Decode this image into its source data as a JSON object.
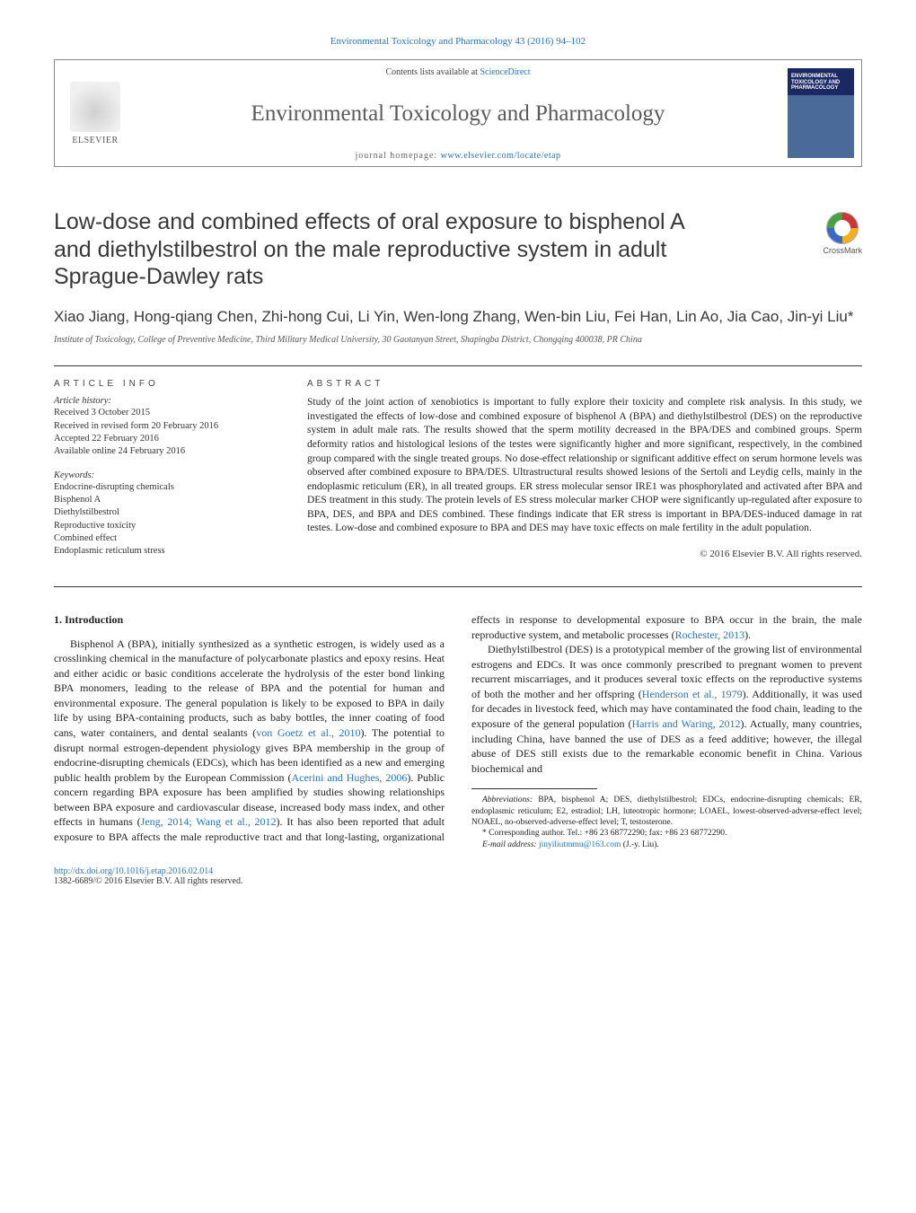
{
  "header": {
    "citation_line": "Environmental Toxicology and Pharmacology 43 (2016) 94–102",
    "contents_line_prefix": "Contents lists available at ",
    "contents_link": "ScienceDirect",
    "journal_title": "Environmental Toxicology and Pharmacology",
    "homepage_prefix": "journal homepage: ",
    "homepage_link": "www.elsevier.com/locate/etap",
    "elsevier_label": "ELSEVIER",
    "cover_text": "ENVIRONMENTAL TOXICOLOGY AND PHARMACOLOGY"
  },
  "colors": {
    "link": "#2a74b8",
    "text": "#222222",
    "heading_gray": "#383838",
    "border": "#888888",
    "cover_top": "#1a2864",
    "cover_bottom": "#4a6a9a",
    "rule": "#333333"
  },
  "crossmark_label": "CrossMark",
  "article": {
    "title": "Low-dose and combined effects of oral exposure to bisphenol A and diethylstilbestrol on the male reproductive system in adult Sprague-Dawley rats",
    "authors": "Xiao Jiang, Hong-qiang Chen, Zhi-hong Cui, Li Yin, Wen-long Zhang, Wen-bin Liu, Fei Han, Lin Ao, Jia Cao, Jin-yi Liu*",
    "affiliation": "Institute of Toxicology, College of Preventive Medicine, Third Military Medical University, 30 Gaotanyan Street, Shapingba District, Chongqing 400038, PR China"
  },
  "info": {
    "heading": "article info",
    "history_label": "Article history:",
    "history": [
      "Received 3 October 2015",
      "Received in revised form 20 February 2016",
      "Accepted 22 February 2016",
      "Available online 24 February 2016"
    ],
    "keywords_label": "Keywords:",
    "keywords": [
      "Endocrine-disrupting chemicals",
      "Bisphenol A",
      "Diethylstilbestrol",
      "Reproductive toxicity",
      "Combined effect",
      "Endoplasmic reticulum stress"
    ]
  },
  "abstract": {
    "heading": "abstract",
    "body": "Study of the joint action of xenobiotics is important to fully explore their toxicity and complete risk analysis. In this study, we investigated the effects of low-dose and combined exposure of bisphenol A (BPA) and diethylstilbestrol (DES) on the reproductive system in adult male rats. The results showed that the sperm motility decreased in the BPA/DES and combined groups. Sperm deformity ratios and histological lesions of the testes were significantly higher and more significant, respectively, in the combined group compared with the single treated groups. No dose-effect relationship or significant additive effect on serum hormone levels was observed after combined exposure to BPA/DES. Ultrastructural results showed lesions of the Sertoli and Leydig cells, mainly in the endoplasmic reticulum (ER), in all treated groups. ER stress molecular sensor IRE1 was phosphorylated and activated after BPA and DES treatment in this study. The protein levels of ES stress molecular marker CHOP were significantly up-regulated after exposure to BPA, DES, and BPA and DES combined. These findings indicate that ER stress is important in BPA/DES-induced damage in rat testes. Low-dose and combined exposure to BPA and DES may have toxic effects on male fertility in the adult population.",
    "copyright": "© 2016 Elsevier B.V. All rights reserved."
  },
  "body": {
    "section_heading": "1.  Introduction",
    "p1": "Bisphenol A (BPA), initially synthesized as a synthetic estrogen, is widely used as a crosslinking chemical in the manufacture of polycarbonate plastics and epoxy resins. Heat and either acidic or basic conditions accelerate the hydrolysis of the ester bond linking BPA monomers, leading to the release of BPA and the potential for human and environmental exposure. The general population is likely to be exposed to BPA in daily life by using BPA-containing products, such as baby bottles, the inner coating of food cans, water containers, and dental sealants (",
    "p1_cite": "von Goetz et al., 2010",
    "p1_tail": "). The potential to disrupt normal estrogen-dependent physiology gives BPA membership in the group of endocrine-disrupting chemicals",
    "p2_lead": "(EDCs), which has been identified as a new and emerging public health problem by the European Commission (",
    "p2_cite1": "Acerini and Hughes, 2006",
    "p2_mid1": "). Public concern regarding BPA exposure has been amplified by studies showing relationships between BPA exposure and cardiovascular disease, increased body mass index, and other effects in humans (",
    "p2_cite2": "Jeng, 2014; Wang et al., 2012",
    "p2_mid2": "). It has also been reported that adult exposure to BPA affects the male reproductive tract and that long-lasting, organizational effects in response to developmental exposure to BPA occur in the brain, the male reproductive system, and metabolic processes (",
    "p2_cite3": "Rochester, 2013",
    "p2_tail": ").",
    "p3_lead": "Diethylstilbestrol (DES) is a prototypical member of the growing list of environmental estrogens and EDCs. It was once commonly prescribed to pregnant women to prevent recurrent miscarriages, and it produces several toxic effects on the reproductive systems of both the mother and her offspring (",
    "p3_cite1": "Henderson et al., 1979",
    "p3_mid1": "). Additionally, it was used for decades in livestock feed, which may have contaminated the food chain, leading to the exposure of the general population (",
    "p3_cite2": "Harris and Waring, 2012",
    "p3_tail": "). Actually, many countries, including China, have banned the use of DES as a feed additive; however, the illegal abuse of DES still exists due to the remarkable economic benefit in China. Various biochemical and"
  },
  "footnotes": {
    "abbrev_label": "Abbreviations:",
    "abbrev_text": " BPA, bisphenol A; DES, diethylstilbestrol; EDCs, endocrine-disrupting chemicals; ER, endoplasmic reticulum; E2, estradiol; LH, luteotropic hormone; LOAEL, lowest-observed-adverse-effect level; NOAEL, no-observed-adverse-effect level; T, testosterone.",
    "corr_label": "* Corresponding author. Tel.: +86 23 68772290; fax: +86 23 68772290.",
    "email_label": "E-mail address: ",
    "email": "jinyiliutmmu@163.com",
    "email_tail": " (J.-y. Liu)."
  },
  "footer": {
    "doi": "http://dx.doi.org/10.1016/j.etap.2016.02.014",
    "issn_line": "1382-6689/© 2016 Elsevier B.V. All rights reserved."
  }
}
